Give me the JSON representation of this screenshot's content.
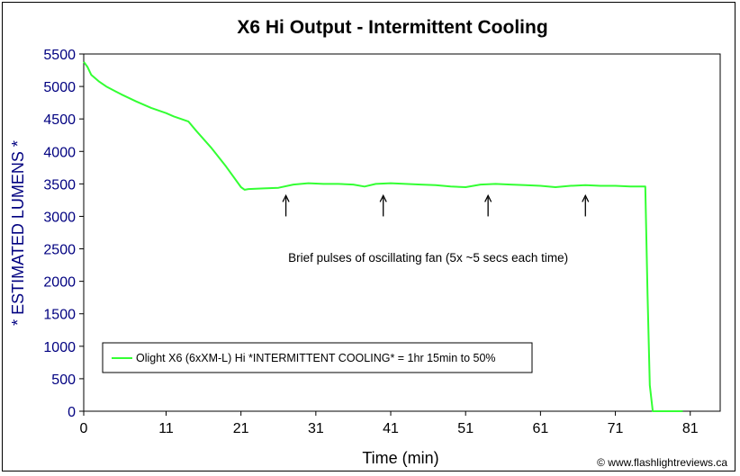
{
  "chart_data": {
    "type": "line",
    "title": "X6 Hi Output - Intermittent Cooling",
    "xlabel": "Time (min)",
    "ylabel": "* ESTIMATED LUMENS *",
    "xlim": [
      0,
      85
    ],
    "ylim": [
      0,
      5500
    ],
    "xticks": [
      0,
      11,
      21,
      31,
      41,
      51,
      61,
      71,
      81
    ],
    "yticks": [
      0,
      500,
      1000,
      1500,
      2000,
      2500,
      3000,
      3500,
      4000,
      4500,
      5000,
      5500
    ],
    "grid": false,
    "legend_position": "bottom-left",
    "series": [
      {
        "name": "Olight X6 (6xXM-L) Hi *INTERMITTENT COOLING* = 1hr 15min to 50%",
        "color": "#33ff33",
        "x": [
          0,
          0.5,
          1,
          2,
          3,
          5,
          7,
          9,
          11,
          12,
          13,
          14,
          15,
          17,
          19,
          21,
          21.5,
          22,
          24,
          26,
          28,
          30,
          32,
          34,
          36,
          37.5,
          39,
          41,
          43,
          45,
          47,
          49,
          51,
          53,
          55,
          57,
          59,
          61,
          63,
          65,
          67,
          69,
          71,
          73,
          75,
          75.3,
          75.6,
          76,
          78,
          80
        ],
        "y": [
          5380,
          5300,
          5180,
          5080,
          5000,
          4880,
          4770,
          4670,
          4590,
          4540,
          4500,
          4460,
          4320,
          4060,
          3770,
          3450,
          3410,
          3420,
          3430,
          3440,
          3490,
          3510,
          3500,
          3500,
          3490,
          3460,
          3500,
          3510,
          3500,
          3490,
          3480,
          3460,
          3450,
          3490,
          3500,
          3490,
          3480,
          3470,
          3450,
          3470,
          3480,
          3470,
          3470,
          3460,
          3460,
          1800,
          400,
          0,
          0,
          0
        ]
      }
    ],
    "annotations": [
      {
        "text": "Brief pulses of oscillating fan (5x ~5 secs each time)",
        "x": 46,
        "y": 2300
      }
    ],
    "arrows": [
      {
        "x": 27,
        "y_tail": 3000,
        "y_head": 3320
      },
      {
        "x": 40,
        "y_tail": 3000,
        "y_head": 3320
      },
      {
        "x": 54,
        "y_tail": 3000,
        "y_head": 3320
      },
      {
        "x": 67,
        "y_tail": 3000,
        "y_head": 3320
      }
    ]
  },
  "credit": "© www.flashlightreviews.ca",
  "colors": {
    "axis_tick_y": "#000080",
    "line": "#33ff33"
  }
}
